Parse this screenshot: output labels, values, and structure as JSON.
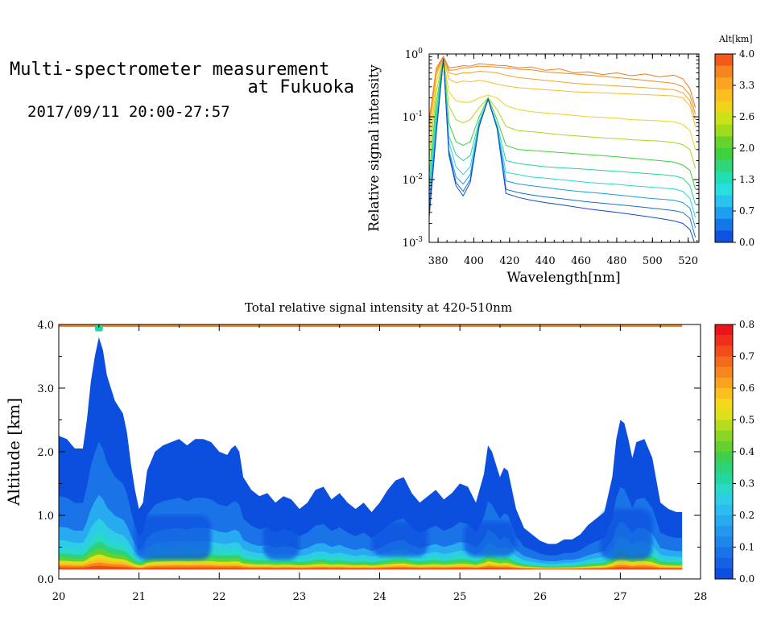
{
  "header": {
    "title_line1": "Multi-spectrometer measurement",
    "title_line2": "at Fukuoka",
    "date_range": "2017/09/11 20:00-27:57"
  },
  "chart_data": [
    {
      "type": "line",
      "ylabel": "Relative signal intensity",
      "xlabel": "Wavelength[nm]",
      "yscale": "log",
      "xlim": [
        375,
        526
      ],
      "ylim": [
        0.001,
        1
      ],
      "x_ticks": [
        "380",
        "400",
        "420",
        "440",
        "460",
        "480",
        "500",
        "520"
      ],
      "x_tick_values": [
        380,
        400,
        420,
        440,
        460,
        480,
        500,
        520
      ],
      "y_tick_exponents": [
        "0",
        "-1",
        "-2",
        "-3"
      ],
      "colorbar": {
        "title": "Alt[km]",
        "tick_labels": [
          "4.0",
          "3.3",
          "2.6",
          "2.0",
          "1.3",
          "0.7",
          "0.0"
        ],
        "colors": [
          "#f25a1a",
          "#f7851f",
          "#fba423",
          "#fdbe1f",
          "#f0d41a",
          "#cbe118",
          "#9fdc1d",
          "#66d22b",
          "#3ed140",
          "#2fd67b",
          "#21deb4",
          "#27e0dd",
          "#28c3ef",
          "#1e9ef0",
          "#1477e8",
          "#0e52e0"
        ]
      },
      "x": [
        375,
        379,
        383,
        386,
        390,
        394,
        398,
        403,
        408,
        413,
        418,
        425,
        432,
        440,
        448,
        456,
        464,
        472,
        480,
        488,
        496,
        504,
        512,
        517,
        521,
        524
      ],
      "series": [
        {
          "color": "#f07a1c",
          "values": [
            0.09,
            0.6,
            0.92,
            0.6,
            0.62,
            0.65,
            0.64,
            0.7,
            0.68,
            0.66,
            0.65,
            0.6,
            0.62,
            0.55,
            0.58,
            0.5,
            0.52,
            0.47,
            0.5,
            0.45,
            0.48,
            0.43,
            0.46,
            0.4,
            0.28,
            0.14
          ]
        },
        {
          "color": "#f28a22",
          "values": [
            0.08,
            0.55,
            0.9,
            0.55,
            0.56,
            0.6,
            0.61,
            0.64,
            0.63,
            0.62,
            0.6,
            0.57,
            0.56,
            0.52,
            0.5,
            0.48,
            0.46,
            0.44,
            0.42,
            0.4,
            0.38,
            0.36,
            0.34,
            0.3,
            0.22,
            0.11
          ]
        },
        {
          "color": "#f5a02a",
          "values": [
            0.07,
            0.5,
            0.88,
            0.5,
            0.47,
            0.5,
            0.5,
            0.53,
            0.52,
            0.5,
            0.46,
            0.42,
            0.4,
            0.38,
            0.36,
            0.34,
            0.33,
            0.32,
            0.31,
            0.3,
            0.29,
            0.28,
            0.27,
            0.24,
            0.18,
            0.09
          ]
        },
        {
          "color": "#f8bc2a",
          "values": [
            0.05,
            0.45,
            0.86,
            0.4,
            0.35,
            0.37,
            0.36,
            0.38,
            0.36,
            0.33,
            0.31,
            0.29,
            0.28,
            0.27,
            0.26,
            0.25,
            0.245,
            0.24,
            0.235,
            0.23,
            0.225,
            0.22,
            0.215,
            0.2,
            0.15,
            0.07
          ]
        },
        {
          "color": "#eed21c",
          "values": [
            0.03,
            0.35,
            0.85,
            0.25,
            0.18,
            0.17,
            0.17,
            0.2,
            0.22,
            0.2,
            0.15,
            0.13,
            0.12,
            0.115,
            0.11,
            0.105,
            0.1,
            0.098,
            0.095,
            0.09,
            0.088,
            0.086,
            0.083,
            0.075,
            0.06,
            0.03
          ]
        },
        {
          "color": "#a8d81e",
          "values": [
            0.02,
            0.25,
            0.85,
            0.15,
            0.09,
            0.08,
            0.09,
            0.14,
            0.2,
            0.13,
            0.07,
            0.06,
            0.058,
            0.055,
            0.052,
            0.05,
            0.048,
            0.046,
            0.045,
            0.043,
            0.042,
            0.041,
            0.039,
            0.036,
            0.03,
            0.015
          ]
        },
        {
          "color": "#3fce3b",
          "values": [
            0.012,
            0.17,
            0.85,
            0.08,
            0.04,
            0.035,
            0.04,
            0.1,
            0.2,
            0.09,
            0.035,
            0.03,
            0.029,
            0.028,
            0.027,
            0.026,
            0.025,
            0.024,
            0.023,
            0.022,
            0.021,
            0.02,
            0.019,
            0.017,
            0.014,
            0.007
          ]
        },
        {
          "color": "#25d39b",
          "values": [
            0.008,
            0.12,
            0.85,
            0.05,
            0.025,
            0.02,
            0.024,
            0.085,
            0.19,
            0.075,
            0.02,
            0.018,
            0.017,
            0.016,
            0.0155,
            0.015,
            0.0145,
            0.014,
            0.0135,
            0.013,
            0.0125,
            0.012,
            0.0115,
            0.0105,
            0.008,
            0.004
          ]
        },
        {
          "color": "#27d6dc",
          "values": [
            0.006,
            0.09,
            0.85,
            0.04,
            0.016,
            0.012,
            0.016,
            0.08,
            0.19,
            0.07,
            0.013,
            0.012,
            0.011,
            0.0105,
            0.01,
            0.0095,
            0.009,
            0.0087,
            0.0084,
            0.008,
            0.0077,
            0.0074,
            0.0071,
            0.0065,
            0.005,
            0.0025
          ]
        },
        {
          "color": "#1c9be8",
          "values": [
            0.004,
            0.07,
            0.85,
            0.03,
            0.011,
            0.0085,
            0.012,
            0.075,
            0.19,
            0.068,
            0.0095,
            0.0085,
            0.008,
            0.0075,
            0.007,
            0.0066,
            0.0063,
            0.006,
            0.0057,
            0.0054,
            0.0051,
            0.0049,
            0.0047,
            0.0043,
            0.0035,
            0.0017
          ]
        },
        {
          "color": "#136fd8",
          "values": [
            0.003,
            0.06,
            0.85,
            0.027,
            0.009,
            0.0065,
            0.01,
            0.072,
            0.19,
            0.066,
            0.007,
            0.0062,
            0.0057,
            0.0053,
            0.005,
            0.0047,
            0.0044,
            0.0042,
            0.004,
            0.0038,
            0.0036,
            0.0034,
            0.0032,
            0.003,
            0.0024,
            0.0012
          ]
        },
        {
          "color": "#0f4fc6",
          "values": [
            0.0025,
            0.055,
            0.85,
            0.025,
            0.008,
            0.0055,
            0.009,
            0.07,
            0.19,
            0.065,
            0.006,
            0.0052,
            0.0047,
            0.0043,
            0.004,
            0.0037,
            0.0034,
            0.0032,
            0.003,
            0.0028,
            0.0026,
            0.0024,
            0.0022,
            0.002,
            0.0016,
            0.0009
          ]
        }
      ]
    },
    {
      "type": "heatmap",
      "title": "Total relative signal intensity at 420-510nm",
      "ylabel": "Altitude [km]",
      "xlim": [
        20,
        28
      ],
      "ylim": [
        0,
        4
      ],
      "x_ticks": [
        "20",
        "21",
        "22",
        "23",
        "24",
        "25",
        "26",
        "27",
        "28"
      ],
      "y_ticks": [
        "0.0",
        "1.0",
        "2.0",
        "3.0",
        "4.0"
      ],
      "colorbar": {
        "tick_labels": [
          "0.8",
          "0.7",
          "0.6",
          "0.5",
          "0.4",
          "0.3",
          "0.2",
          "0.1",
          "0.0"
        ],
        "colors": [
          "#0c4fdf",
          "#1461e3",
          "#1a73e7",
          "#1f86eb",
          "#2398ee",
          "#28aaf0",
          "#2dbcf0",
          "#2ecde6",
          "#29d8c6",
          "#24d79f",
          "#2cd378",
          "#3fcf4e",
          "#64d12f",
          "#8dd524",
          "#b5dc1d",
          "#dde01a",
          "#f7d71c",
          "#fbbf1e",
          "#f9a31f",
          "#f6861e",
          "#f46a1c",
          "#f24c1b",
          "#ef2f1a",
          "#ea151a"
        ]
      },
      "layer_base_km": 0.15,
      "top_band_km": 3.98,
      "boundary_time": [
        20.0,
        20.1,
        20.2,
        20.3,
        20.35,
        20.4,
        20.45,
        20.5,
        20.55,
        20.6,
        20.7,
        20.8,
        20.85,
        20.9,
        20.95,
        21.0,
        21.05,
        21.1,
        21.2,
        21.3,
        21.4,
        21.5,
        21.6,
        21.7,
        21.8,
        21.9,
        22.0,
        22.1,
        22.15,
        22.2,
        22.25,
        22.3,
        22.4,
        22.5,
        22.6,
        22.7,
        22.8,
        22.9,
        23.0,
        23.1,
        23.2,
        23.3,
        23.4,
        23.5,
        23.6,
        23.7,
        23.8,
        23.9,
        24.0,
        24.1,
        24.2,
        24.3,
        24.4,
        24.5,
        24.6,
        24.7,
        24.8,
        24.9,
        25.0,
        25.1,
        25.2,
        25.3,
        25.35,
        25.4,
        25.5,
        25.55,
        25.6,
        25.7,
        25.8,
        25.9,
        26.0,
        26.1,
        26.2,
        26.3,
        26.4,
        26.5,
        26.6,
        26.7,
        26.8,
        26.9,
        26.95,
        27.0,
        27.05,
        27.1,
        27.15,
        27.2,
        27.3,
        27.4,
        27.5,
        27.6,
        27.7,
        27.77
      ],
      "boundary_km": [
        2.25,
        2.2,
        2.05,
        2.05,
        2.5,
        3.1,
        3.5,
        3.8,
        3.6,
        3.2,
        2.8,
        2.6,
        2.3,
        1.8,
        1.4,
        1.1,
        1.2,
        1.7,
        2.0,
        2.1,
        2.15,
        2.2,
        2.1,
        2.2,
        2.2,
        2.15,
        2.0,
        1.95,
        2.05,
        2.1,
        2.0,
        1.6,
        1.4,
        1.3,
        1.35,
        1.2,
        1.3,
        1.25,
        1.1,
        1.2,
        1.4,
        1.45,
        1.25,
        1.35,
        1.2,
        1.1,
        1.2,
        1.05,
        1.2,
        1.4,
        1.55,
        1.6,
        1.35,
        1.2,
        1.3,
        1.4,
        1.25,
        1.35,
        1.5,
        1.45,
        1.2,
        1.65,
        2.1,
        2.0,
        1.6,
        1.75,
        1.7,
        1.1,
        0.8,
        0.7,
        0.6,
        0.55,
        0.55,
        0.62,
        0.62,
        0.7,
        0.85,
        0.95,
        1.05,
        1.6,
        2.2,
        2.5,
        2.45,
        2.2,
        1.9,
        2.15,
        2.2,
        1.9,
        1.2,
        1.1,
        1.05,
        1.05
      ]
    }
  ]
}
